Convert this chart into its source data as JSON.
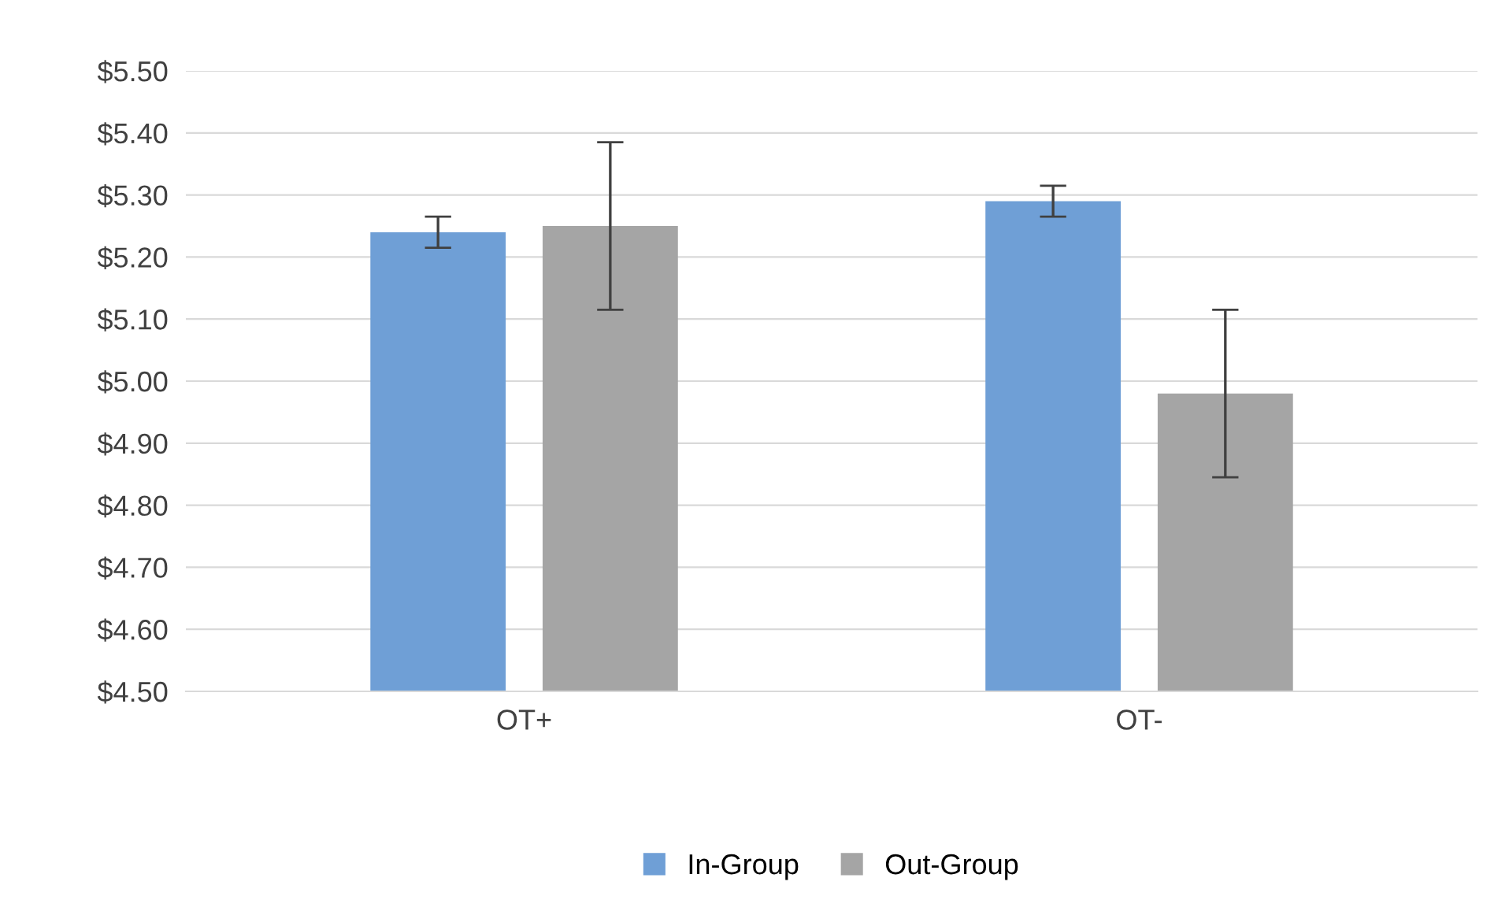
{
  "chart_data": {
    "type": "bar",
    "categories": [
      "OT+",
      "OT-"
    ],
    "series": [
      {
        "name": "In-Group",
        "color": "#6f9fd6",
        "values": [
          5.24,
          5.29
        ],
        "errors": [
          0.025,
          0.025
        ]
      },
      {
        "name": "Out-Group",
        "color": "#a5a5a5",
        "values": [
          5.25,
          4.98
        ],
        "errors": [
          0.135,
          0.135
        ]
      }
    ],
    "ylim": [
      4.5,
      5.5
    ],
    "yticks": [
      {
        "value": 4.5,
        "label": "$4.50"
      },
      {
        "value": 4.6,
        "label": "$4.60"
      },
      {
        "value": 4.7,
        "label": "$4.70"
      },
      {
        "value": 4.8,
        "label": "$4.80"
      },
      {
        "value": 4.9,
        "label": "$4.90"
      },
      {
        "value": 5.0,
        "label": "$5.00"
      },
      {
        "value": 5.1,
        "label": "$5.10"
      },
      {
        "value": 5.2,
        "label": "$5.20"
      },
      {
        "value": 5.3,
        "label": "$5.30"
      },
      {
        "value": 5.4,
        "label": "$5.40"
      },
      {
        "value": 5.5,
        "label": "$5.50"
      }
    ],
    "grid": "y",
    "legend": "bottom"
  }
}
